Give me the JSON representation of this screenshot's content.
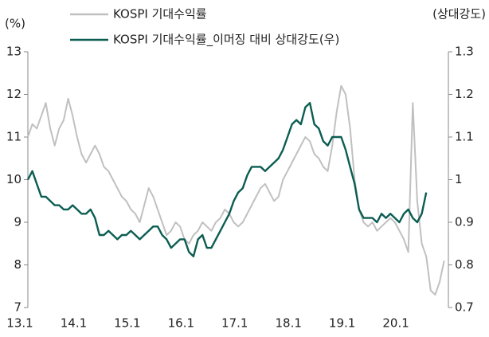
{
  "chart_data": {
    "type": "line",
    "y_axis_label": "(%)",
    "y2_axis_label": "(상대강도)",
    "categories": [
      "13.1",
      null,
      null,
      null,
      null,
      null,
      null,
      null,
      null,
      null,
      null,
      null,
      "14.1",
      null,
      null,
      null,
      null,
      null,
      null,
      null,
      null,
      null,
      null,
      null,
      "15.1",
      null,
      null,
      null,
      null,
      null,
      null,
      null,
      null,
      null,
      null,
      null,
      "16.1",
      null,
      null,
      null,
      null,
      null,
      null,
      null,
      null,
      null,
      null,
      null,
      "17.1",
      null,
      null,
      null,
      null,
      null,
      null,
      null,
      null,
      null,
      null,
      null,
      "18.1",
      null,
      null,
      null,
      null,
      null,
      null,
      null,
      null,
      null,
      null,
      null,
      "19.1",
      null,
      null,
      null,
      null,
      null,
      null,
      null,
      null,
      null,
      null,
      null,
      "20.1",
      null,
      null,
      null,
      null,
      null,
      null,
      null,
      null,
      null
    ],
    "series": [
      {
        "name": "KOSPI 기대수익률",
        "color": "#c0c0c0",
        "axis": "y",
        "values": [
          11.0,
          11.3,
          11.2,
          11.5,
          11.8,
          11.2,
          10.8,
          11.2,
          11.4,
          11.9,
          11.5,
          11.0,
          10.6,
          10.4,
          10.6,
          10.8,
          10.6,
          10.3,
          10.2,
          10.0,
          9.8,
          9.6,
          9.5,
          9.3,
          9.2,
          9.0,
          9.4,
          9.8,
          9.6,
          9.3,
          9.0,
          8.7,
          8.8,
          9.0,
          8.9,
          8.6,
          8.5,
          8.7,
          8.8,
          9.0,
          8.9,
          8.8,
          9.0,
          9.1,
          9.3,
          9.2,
          9.0,
          8.9,
          9.0,
          9.2,
          9.4,
          9.6,
          9.8,
          9.9,
          9.7,
          9.5,
          9.6,
          10.0,
          10.2,
          10.4,
          10.6,
          10.8,
          11.0,
          10.9,
          10.6,
          10.5,
          10.3,
          10.2,
          10.8,
          11.6,
          12.2,
          12.0,
          11.2,
          10.0,
          9.3,
          9.0,
          8.9,
          9.0,
          8.8,
          8.9,
          9.0,
          9.1,
          9.0,
          8.8,
          8.6,
          8.3,
          11.8,
          9.5,
          8.5,
          8.2,
          7.4,
          7.3,
          7.6,
          8.1
        ]
      },
      {
        "name": "KOSPI 기대수익률_이머징 대비 상대강도(우)",
        "color": "#0b5d52",
        "axis": "y2",
        "values": [
          1.0,
          1.02,
          0.99,
          0.96,
          0.96,
          0.95,
          0.94,
          0.94,
          0.93,
          0.93,
          0.94,
          0.93,
          0.92,
          0.92,
          0.93,
          0.91,
          0.87,
          0.87,
          0.88,
          0.87,
          0.86,
          0.87,
          0.87,
          0.88,
          0.87,
          0.86,
          0.87,
          0.88,
          0.89,
          0.89,
          0.87,
          0.86,
          0.84,
          0.85,
          0.86,
          0.86,
          0.83,
          0.82,
          0.86,
          0.87,
          0.84,
          0.84,
          0.86,
          0.88,
          0.9,
          0.92,
          0.95,
          0.97,
          0.98,
          1.01,
          1.03,
          1.03,
          1.03,
          1.02,
          1.03,
          1.04,
          1.05,
          1.07,
          1.1,
          1.13,
          1.14,
          1.13,
          1.17,
          1.18,
          1.13,
          1.12,
          1.09,
          1.08,
          1.1,
          1.1,
          1.1,
          1.07,
          1.03,
          0.99,
          0.93,
          0.91,
          0.91,
          0.91,
          0.9,
          0.92,
          0.91,
          0.92,
          0.91,
          0.9,
          0.92,
          0.93,
          0.91,
          0.9,
          0.92,
          0.97,
          null,
          null,
          null,
          null
        ]
      }
    ],
    "ylim": [
      7,
      13
    ],
    "yticks": [
      7,
      8,
      9,
      10,
      11,
      12,
      13
    ],
    "y2lim": [
      0.7,
      1.3
    ],
    "y2ticks": [
      0.7,
      0.8,
      0.9,
      1,
      1.1,
      1.2,
      1.3
    ]
  }
}
